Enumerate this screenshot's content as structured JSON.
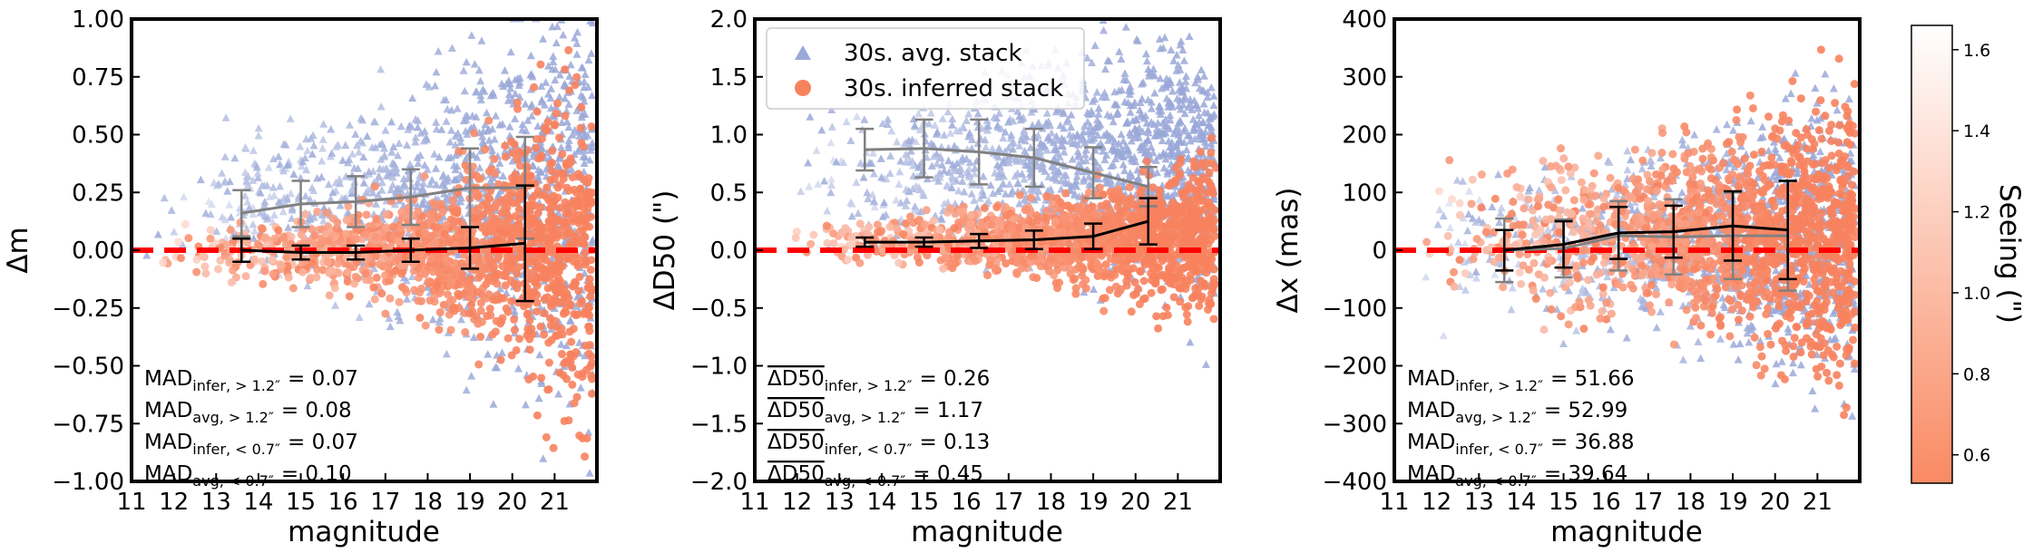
{
  "colors": {
    "infer": "#f7825e",
    "avg": "#9aa8d8",
    "zero_line": "#ff0000",
    "avg_line": "#808080",
    "infer_line": "#000000",
    "colorbar_low": "#f98a63",
    "colorbar_high": "#ffffff"
  },
  "colorbar": {
    "label": "Seeing (\")",
    "ticks": [
      "0.6",
      "0.8",
      "1.0",
      "1.2",
      "1.4",
      "1.6"
    ],
    "tick_values": [
      0.6,
      0.8,
      1.0,
      1.2,
      1.4,
      1.6
    ],
    "range": [
      0.53,
      1.66
    ]
  },
  "legend": {
    "placement": "top-center",
    "avg_label": "30s. avg. stack",
    "infer_label": "30s. inferred stack"
  },
  "chart_data": [
    {
      "type": "scatter",
      "xlabel": "magnitude",
      "ylabel": "Δm",
      "xlim": [
        11,
        22
      ],
      "ylim": [
        -1.0,
        1.0
      ],
      "xticks": [
        11,
        12,
        13,
        14,
        15,
        16,
        17,
        18,
        19,
        20,
        21
      ],
      "yticks": [
        -1.0,
        -0.75,
        -0.5,
        -0.25,
        0.0,
        0.25,
        0.5,
        0.75,
        1.0
      ],
      "ytick_labels": [
        "−1.00",
        "−0.75",
        "−0.50",
        "−0.25",
        "0.00",
        "0.25",
        "0.50",
        "0.75",
        "1.00"
      ],
      "zero_line": 0,
      "series": [
        {
          "marker": "triangle",
          "color": "avg",
          "x": [
            13.6,
            15.0,
            16.3,
            17.6,
            19.0,
            20.3
          ],
          "y": [
            0.16,
            0.2,
            0.21,
            0.23,
            0.27,
            0.27
          ],
          "err": [
            0.1,
            0.1,
            0.11,
            0.12,
            0.17,
            0.22
          ]
        },
        {
          "marker": "circle",
          "color": "infer",
          "x": [
            13.6,
            15.0,
            16.3,
            17.6,
            19.0,
            20.3
          ],
          "y": [
            0.0,
            -0.01,
            -0.01,
            0.0,
            0.01,
            0.03
          ],
          "err": [
            0.05,
            0.03,
            0.03,
            0.05,
            0.09,
            0.25
          ]
        }
      ],
      "annotations": [
        {
          "base": "MAD",
          "sub": "infer, > 1.2″",
          "value": "= 0.07"
        },
        {
          "base": "MAD",
          "sub": "avg, > 1.2″",
          "value": "= 0.08"
        },
        {
          "base": "MAD",
          "sub": "infer, < 0.7″",
          "value": "= 0.07"
        },
        {
          "base": "MAD",
          "sub": "avg, < 0.7″",
          "value": "= 0.10"
        }
      ],
      "cloud": {
        "seed": 11,
        "count_avg": 1200,
        "count_infer": 1400,
        "avg_center": 0.22,
        "avg_spread": 0.12,
        "infer_center": 0.0,
        "infer_spread": 0.05,
        "grow": 0.32,
        "xmin": 11.3,
        "xmax": 21.9
      }
    },
    {
      "type": "scatter",
      "xlabel": "magnitude",
      "ylabel": "ΔD50 (\")",
      "xlim": [
        11,
        22
      ],
      "ylim": [
        -2.0,
        2.0
      ],
      "xticks": [
        11,
        12,
        13,
        14,
        15,
        16,
        17,
        18,
        19,
        20,
        21
      ],
      "yticks": [
        -2.0,
        -1.5,
        -1.0,
        -0.5,
        0.0,
        0.5,
        1.0,
        1.5,
        2.0
      ],
      "ytick_labels": [
        "−2.0",
        "−1.5",
        "−1.0",
        "−0.5",
        "0.0",
        "0.5",
        "1.0",
        "1.5",
        "2.0"
      ],
      "zero_line": 0,
      "series": [
        {
          "marker": "triangle",
          "color": "avg",
          "x": [
            13.6,
            15.0,
            16.3,
            17.6,
            19.0,
            20.3
          ],
          "y": [
            0.87,
            0.88,
            0.85,
            0.8,
            0.67,
            0.55
          ],
          "err": [
            0.18,
            0.25,
            0.28,
            0.25,
            0.22,
            0.17
          ]
        },
        {
          "marker": "circle",
          "color": "infer",
          "x": [
            13.6,
            15.0,
            16.3,
            17.6,
            19.0,
            20.3
          ],
          "y": [
            0.07,
            0.07,
            0.08,
            0.09,
            0.12,
            0.25
          ],
          "err": [
            0.04,
            0.04,
            0.06,
            0.08,
            0.11,
            0.2
          ]
        }
      ],
      "annotations": [
        {
          "base": "ΔD50",
          "sub": "infer, > 1.2″",
          "value": "= 0.26"
        },
        {
          "base": "ΔD50",
          "sub": "avg, > 1.2″",
          "value": "= 1.17"
        },
        {
          "base": "ΔD50",
          "sub": "infer, < 0.7″",
          "value": "= 0.13"
        },
        {
          "base": "ΔD50",
          "sub": "avg, < 0.7″",
          "value": "= 0.45"
        }
      ],
      "cloud": {
        "seed": 29,
        "count_avg": 1300,
        "count_infer": 1400,
        "avg_center": 0.75,
        "avg_spread": 0.3,
        "infer_center": 0.1,
        "infer_spread": 0.1,
        "grow": 0.25,
        "xmin": 11.5,
        "xmax": 21.9
      }
    },
    {
      "type": "scatter",
      "xlabel": "magnitude",
      "ylabel": "Δx (mas)",
      "xlim": [
        11,
        22
      ],
      "ylim": [
        -400,
        400
      ],
      "xticks": [
        11,
        12,
        13,
        14,
        15,
        16,
        17,
        18,
        19,
        20,
        21
      ],
      "yticks": [
        -400,
        -300,
        -200,
        -100,
        0,
        100,
        200,
        300,
        400
      ],
      "ytick_labels": [
        "−400",
        "−300",
        "−200",
        "−100",
        "0",
        "100",
        "200",
        "300",
        "400"
      ],
      "zero_line": 0,
      "series": [
        {
          "marker": "triangle",
          "color": "avg",
          "x": [
            13.6,
            15.0,
            16.3,
            17.6,
            19.0,
            20.3
          ],
          "y": [
            0,
            3,
            25,
            23,
            25,
            25
          ],
          "err": [
            55,
            50,
            60,
            65,
            75,
            95
          ]
        },
        {
          "marker": "circle",
          "color": "infer",
          "x": [
            13.6,
            15.0,
            16.3,
            17.6,
            19.0,
            20.3
          ],
          "y": [
            0,
            10,
            30,
            32,
            42,
            35
          ],
          "err": [
            35,
            40,
            45,
            45,
            60,
            85
          ]
        }
      ],
      "annotations": [
        {
          "base": "MAD",
          "sub": "infer, > 1.2″",
          "value": "= 51.66"
        },
        {
          "base": "MAD",
          "sub": "avg, > 1.2″",
          "value": "= 52.99"
        },
        {
          "base": "MAD",
          "sub": "infer, < 0.7″",
          "value": "= 36.88"
        },
        {
          "base": "MAD",
          "sub": "avg, < 0.7″",
          "value": "= 39.64"
        }
      ],
      "cloud": {
        "seed": 47,
        "count_avg": 1100,
        "count_infer": 1500,
        "avg_center": 20,
        "avg_spread": 55,
        "infer_center": 25,
        "infer_spread": 55,
        "grow": 70,
        "xmin": 11.5,
        "xmax": 21.9
      }
    }
  ]
}
